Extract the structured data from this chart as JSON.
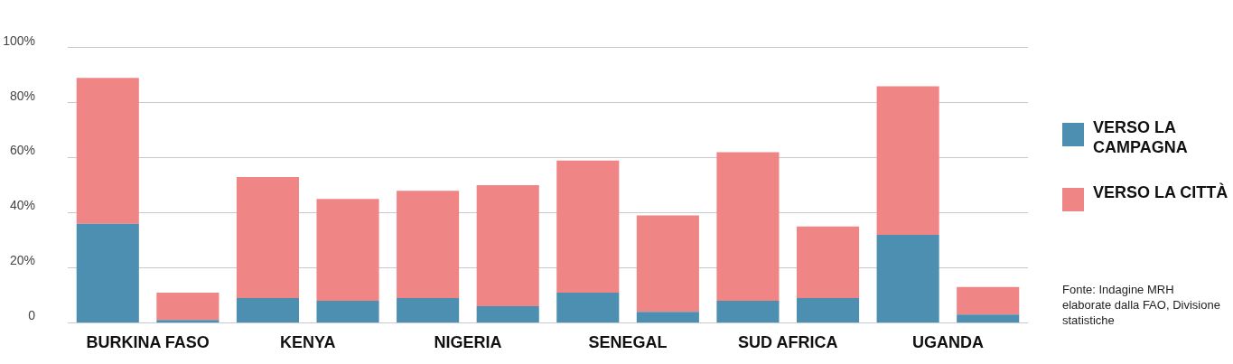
{
  "chart_data": {
    "type": "bar",
    "stacked": true,
    "categories": [
      "BURKINA FASO",
      null,
      "KENYA",
      null,
      "NIGERIA",
      null,
      "SENEGAL",
      null,
      "SUD AFRICA",
      null,
      "UGANDA",
      null
    ],
    "series": [
      {
        "name": "VERSO LA CAMPAGNA",
        "color": "#4d8fb0",
        "values": [
          36,
          1,
          9,
          8,
          9,
          6,
          11,
          4,
          8,
          9,
          32,
          3
        ]
      },
      {
        "name": "VERSO LA CITTÀ",
        "color": "#f08585",
        "values": [
          53,
          10,
          44,
          37,
          39,
          44,
          48,
          35,
          54,
          26,
          54,
          10
        ]
      }
    ],
    "ylim": [
      0,
      100
    ],
    "yticks": [
      {
        "value": 0,
        "label": "0"
      },
      {
        "value": 20,
        "label": "20%"
      },
      {
        "value": 40,
        "label": "40%"
      },
      {
        "value": 60,
        "label": "60%"
      },
      {
        "value": 80,
        "label": "80%"
      },
      {
        "value": 100,
        "label": "100%"
      }
    ],
    "grid": "y",
    "legend": "right",
    "annotations": [
      "Fonte: Indagine MRH elaborate dalla FAO, Divisione statistiche"
    ]
  }
}
